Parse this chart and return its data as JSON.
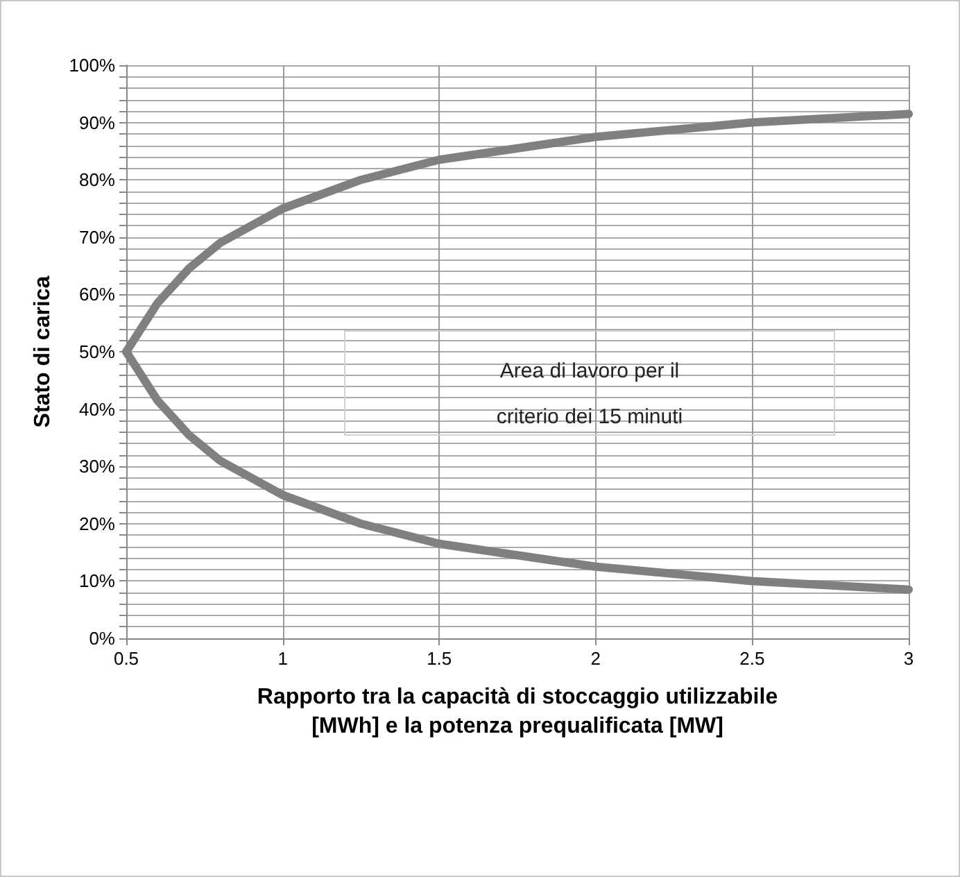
{
  "chart_data": {
    "type": "line",
    "xlabel": "Rapporto tra la capacità di stoccaggio utilizzabile\n[MWh] e la potenza prequalificata [MW]",
    "ylabel": "Stato di carica",
    "annotations": [
      "Area di lavoro per il\ncriterio dei 15 minuti"
    ],
    "series": [
      {
        "color": "#808080",
        "x": [
          0.5,
          0.6,
          0.7,
          0.8,
          0.9,
          1,
          1.25,
          1.5,
          1.75,
          2,
          2.5,
          3
        ],
        "values": [
          50,
          58.5,
          64.5,
          69,
          72,
          75,
          80,
          83.5,
          85.5,
          87.5,
          90,
          91.5
        ]
      },
      {
        "color": "#808080",
        "x": [
          0.5,
          0.6,
          0.7,
          0.8,
          0.9,
          1,
          1.25,
          1.5,
          1.75,
          2,
          2.5,
          3
        ],
        "values": [
          50,
          41.5,
          35.5,
          31,
          28,
          25,
          20,
          16.5,
          14.5,
          12.5,
          10,
          8.5
        ]
      }
    ],
    "xlim": [
      0.5,
      3
    ],
    "xticks": [
      0.5,
      1,
      1.5,
      2,
      2.5,
      3
    ],
    "ylim": [
      0,
      100
    ],
    "yticks": [
      {
        "value": 0,
        "label": "0%"
      },
      {
        "value": 2,
        "label": null
      },
      {
        "value": 4,
        "label": null
      },
      {
        "value": 6,
        "label": null
      },
      {
        "value": 8,
        "label": null
      },
      {
        "value": 10,
        "label": "10%"
      },
      {
        "value": 12,
        "label": null
      },
      {
        "value": 14,
        "label": null
      },
      {
        "value": 16,
        "label": null
      },
      {
        "value": 18,
        "label": null
      },
      {
        "value": 20,
        "label": "20%"
      },
      {
        "value": 22,
        "label": null
      },
      {
        "value": 24,
        "label": null
      },
      {
        "value": 26,
        "label": null
      },
      {
        "value": 28,
        "label": null
      },
      {
        "value": 30,
        "label": "30%"
      },
      {
        "value": 32,
        "label": null
      },
      {
        "value": 34,
        "label": null
      },
      {
        "value": 36,
        "label": null
      },
      {
        "value": 38,
        "label": null
      },
      {
        "value": 40,
        "label": "40%"
      },
      {
        "value": 42,
        "label": null
      },
      {
        "value": 44,
        "label": null
      },
      {
        "value": 46,
        "label": null
      },
      {
        "value": 48,
        "label": null
      },
      {
        "value": 50,
        "label": "50%"
      },
      {
        "value": 52,
        "label": null
      },
      {
        "value": 54,
        "label": null
      },
      {
        "value": 56,
        "label": null
      },
      {
        "value": 58,
        "label": null
      },
      {
        "value": 60,
        "label": "60%"
      },
      {
        "value": 62,
        "label": null
      },
      {
        "value": 64,
        "label": null
      },
      {
        "value": 66,
        "label": null
      },
      {
        "value": 68,
        "label": null
      },
      {
        "value": 70,
        "label": "70%"
      },
      {
        "value": 72,
        "label": null
      },
      {
        "value": 74,
        "label": null
      },
      {
        "value": 76,
        "label": null
      },
      {
        "value": 78,
        "label": null
      },
      {
        "value": 80,
        "label": "80%"
      },
      {
        "value": 82,
        "label": null
      },
      {
        "value": 84,
        "label": null
      },
      {
        "value": 86,
        "label": null
      },
      {
        "value": 88,
        "label": null
      },
      {
        "value": 90,
        "label": "90%"
      },
      {
        "value": 92,
        "label": null
      },
      {
        "value": 94,
        "label": null
      },
      {
        "value": 96,
        "label": null
      },
      {
        "value": 98,
        "label": null
      },
      {
        "value": 100,
        "label": "100%"
      }
    ],
    "grid": true,
    "marker": "none",
    "line_style": "solid"
  }
}
